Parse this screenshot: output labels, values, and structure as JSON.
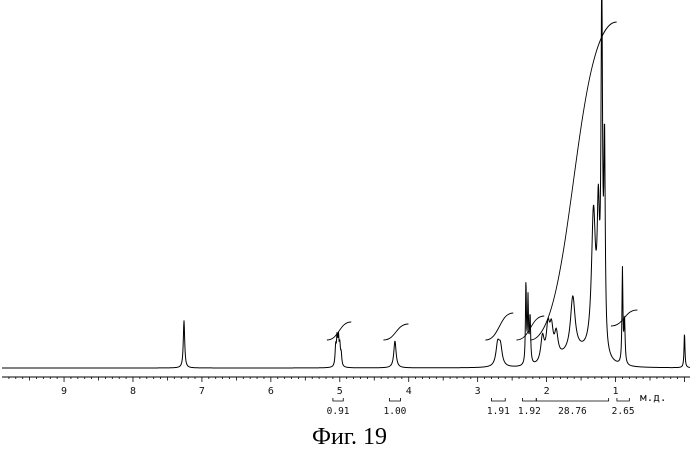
{
  "figure_caption": "Фиг. 19",
  "chart_data": {
    "type": "line",
    "title": "",
    "xlabel": "м.д.",
    "ylabel": "",
    "x_reversed": true,
    "xlim": [
      -0.08,
      9.9
    ],
    "ylim": [
      0,
      100
    ],
    "ticks": [
      {
        "value": 9,
        "label": "9"
      },
      {
        "value": 8,
        "label": "8"
      },
      {
        "value": 7,
        "label": "7"
      },
      {
        "value": 6,
        "label": "6"
      },
      {
        "value": 5,
        "label": "5"
      },
      {
        "value": 4,
        "label": "4"
      },
      {
        "value": 3,
        "label": "3"
      },
      {
        "value": 2,
        "label": "2"
      },
      {
        "value": 1,
        "label": "1"
      }
    ],
    "peaks": [
      {
        "ppm": 7.26,
        "height": 13.1,
        "width": 0.012
      },
      {
        "ppm": 5.06,
        "height": 5.0,
        "width": 0.01
      },
      {
        "ppm": 5.04,
        "height": 7.0,
        "width": 0.01
      },
      {
        "ppm": 5.02,
        "height": 7.2,
        "width": 0.01
      },
      {
        "ppm": 5.0,
        "height": 5.2,
        "width": 0.01
      },
      {
        "ppm": 4.98,
        "height": 3.2,
        "width": 0.01
      },
      {
        "ppm": 4.2,
        "height": 7.4,
        "width": 0.02
      },
      {
        "ppm": 2.71,
        "height": 5.8,
        "width": 0.03
      },
      {
        "ppm": 2.67,
        "height": 5.2,
        "width": 0.03
      },
      {
        "ppm": 2.3,
        "height": 22.6,
        "width": 0.008
      },
      {
        "ppm": 2.27,
        "height": 17.5,
        "width": 0.008
      },
      {
        "ppm": 2.24,
        "height": 13.0,
        "width": 0.01
      },
      {
        "ppm": 2.06,
        "height": 7.0,
        "width": 0.03
      },
      {
        "ppm": 1.98,
        "height": 9.0,
        "width": 0.03
      },
      {
        "ppm": 1.93,
        "height": 8.0,
        "width": 0.03
      },
      {
        "ppm": 1.86,
        "height": 6.5,
        "width": 0.03
      },
      {
        "ppm": 1.62,
        "height": 15.0,
        "width": 0.04
      },
      {
        "ppm": 1.32,
        "height": 38.0,
        "width": 0.035
      },
      {
        "ppm": 1.25,
        "height": 34.0,
        "width": 0.02
      },
      {
        "ppm": 1.2,
        "height": 95.0,
        "width": 0.013
      },
      {
        "ppm": 1.16,
        "height": 55.0,
        "width": 0.012
      },
      {
        "ppm": 0.9,
        "height": 26.0,
        "width": 0.008
      },
      {
        "ppm": 0.87,
        "height": 12.0,
        "width": 0.01
      },
      {
        "ppm": 0.0,
        "height": 9.5,
        "width": 0.008
      }
    ],
    "integrals": [
      {
        "from": 5.1,
        "to": 4.95,
        "value": "0.91"
      },
      {
        "from": 4.28,
        "to": 4.12,
        "value": "1.00"
      },
      {
        "from": 2.8,
        "to": 2.6,
        "value": "1.91"
      },
      {
        "from": 2.35,
        "to": 2.15,
        "value": "1.92"
      },
      {
        "from": 2.15,
        "to": 1.1,
        "value": "28.76"
      },
      {
        "from": 0.98,
        "to": 0.8,
        "value": "2.65"
      }
    ]
  }
}
